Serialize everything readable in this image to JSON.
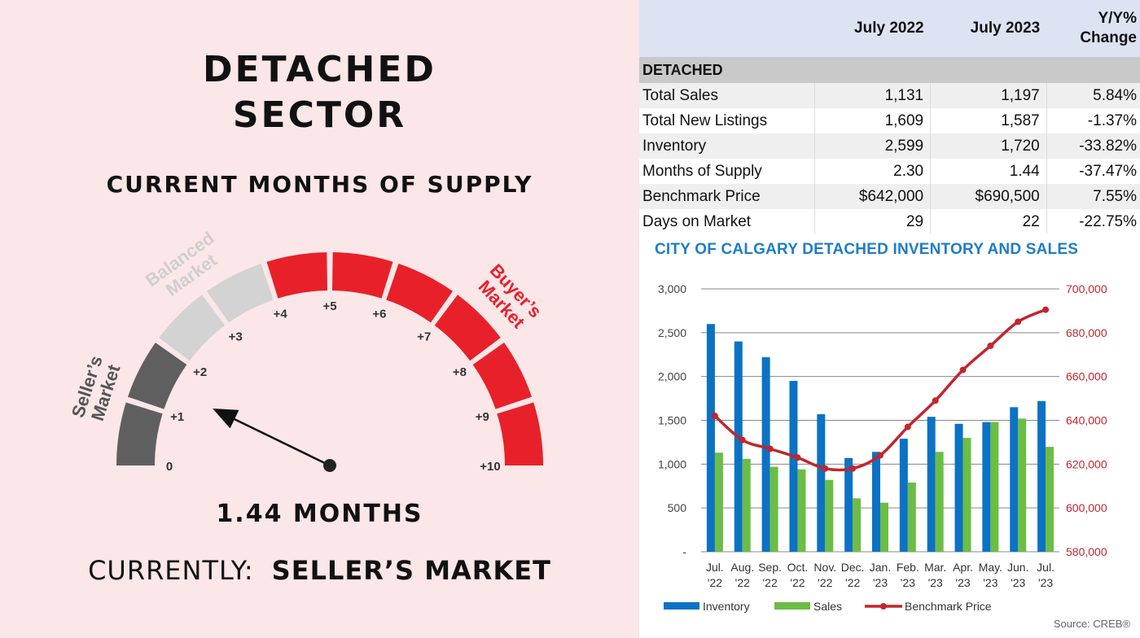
{
  "left": {
    "title_line1": "DETACHED",
    "title_line2": "SECTOR",
    "subtitle": "CURRENT MONTHS OF SUPPLY",
    "value_text": "1.44 MONTHS",
    "status_label": "CURRENTLY:",
    "status_value": "SELLER’S MARKET",
    "gauge": {
      "value": 1.44,
      "min": 0,
      "max": 10,
      "tick_labels": [
        "0",
        "+1",
        "+2",
        "+3",
        "+4",
        "+5",
        "+6",
        "+7",
        "+8",
        "+9",
        "+10"
      ],
      "zones": [
        {
          "name": "Seller’s Market",
          "line1": "Seller’s",
          "line2": "Market",
          "from": 0,
          "to": 2,
          "color": "#5f5f5f"
        },
        {
          "name": "Balanced Market",
          "line1": "Balanced",
          "line2": "Market",
          "from": 2,
          "to": 4,
          "color": "#d3d3d3"
        },
        {
          "name": "Buyer’s Market",
          "line1": "Buyer’s",
          "line2": "Market",
          "from": 4,
          "to": 10,
          "color": "#e8202a"
        }
      ]
    }
  },
  "table": {
    "headers": [
      "",
      "July 2022",
      "July 2023",
      "Y/Y%",
      "Change"
    ],
    "section": "DETACHED",
    "rows": [
      {
        "label": "Total Sales",
        "jul2022": "1,131",
        "jul2023": "1,197",
        "change": "5.84%"
      },
      {
        "label": "Total New Listings",
        "jul2022": "1,609",
        "jul2023": "1,587",
        "change": "-1.37%"
      },
      {
        "label": "Inventory",
        "jul2022": "2,599",
        "jul2023": "1,720",
        "change": "-33.82%"
      },
      {
        "label": "Months of Supply",
        "jul2022": "2.30",
        "jul2023": "1.44",
        "change": "-37.47%"
      },
      {
        "label": "Benchmark Price",
        "jul2022": "$642,000",
        "jul2023": "$690,500",
        "change": "7.55%"
      },
      {
        "label": "Days on Market",
        "jul2022": "29",
        "jul2023": "22",
        "change": "-22.75%"
      }
    ]
  },
  "chart_title": "CITY OF CALGARY DETACHED INVENTORY AND SALES",
  "source": "Source: CREB®",
  "chart_data": {
    "type": "bar",
    "title": "CITY OF CALGARY DETACHED INVENTORY AND SALES",
    "categories": [
      "Jul. '22",
      "Aug. '22",
      "Sep. '22",
      "Oct. '22",
      "Nov. '22",
      "Dec. '22",
      "Jan. '23",
      "Feb. '23",
      "Mar. '23",
      "Apr. '23",
      "May. '23",
      "Jun. '23",
      "Jul. '23"
    ],
    "category_lines": [
      [
        "Jul.",
        "'22"
      ],
      [
        "Aug.",
        "'22"
      ],
      [
        "Sep.",
        "'22"
      ],
      [
        "Oct.",
        "'22"
      ],
      [
        "Nov.",
        "'22"
      ],
      [
        "Dec.",
        "'22"
      ],
      [
        "Jan.",
        "'23"
      ],
      [
        "Feb.",
        "'23"
      ],
      [
        "Mar.",
        "'23"
      ],
      [
        "Apr.",
        "'23"
      ],
      [
        "May.",
        "'23"
      ],
      [
        "Jun.",
        "'23"
      ],
      [
        "Jul.",
        "'23"
      ]
    ],
    "series": [
      {
        "name": "Inventory",
        "type": "bar",
        "axis": "left",
        "color": "#0b72c4",
        "values": [
          2599,
          2400,
          2220,
          1950,
          1570,
          1070,
          1140,
          1290,
          1540,
          1460,
          1480,
          1650,
          1720
        ]
      },
      {
        "name": "Sales",
        "type": "bar",
        "axis": "left",
        "color": "#6cbd45",
        "values": [
          1131,
          1060,
          970,
          940,
          820,
          610,
          560,
          790,
          1140,
          1300,
          1480,
          1520,
          1197
        ]
      },
      {
        "name": "Benchmark Price",
        "type": "line",
        "axis": "right",
        "color": "#c0272d",
        "values": [
          642000,
          631000,
          627000,
          623000,
          618000,
          618000,
          624000,
          637000,
          649000,
          663000,
          674000,
          685000,
          690500
        ]
      }
    ],
    "y_left": {
      "min": 0,
      "max": 3000,
      "ticks": [
        0,
        500,
        1000,
        1500,
        2000,
        2500,
        3000
      ],
      "tick_labels": [
        "-",
        "500",
        "1,000",
        "1,500",
        "2,000",
        "2,500",
        "3,000"
      ]
    },
    "y_right": {
      "min": 580000,
      "max": 700000,
      "ticks": [
        580000,
        600000,
        620000,
        640000,
        660000,
        680000,
        700000
      ],
      "tick_labels": [
        "580,000",
        "600,000",
        "620,000",
        "640,000",
        "660,000",
        "680,000",
        "700,000"
      ]
    },
    "grid": true,
    "legend_position": "bottom",
    "colors": {
      "axis_left_text": "#444444",
      "axis_right_text": "#c0272d",
      "grid": "#888888"
    }
  }
}
